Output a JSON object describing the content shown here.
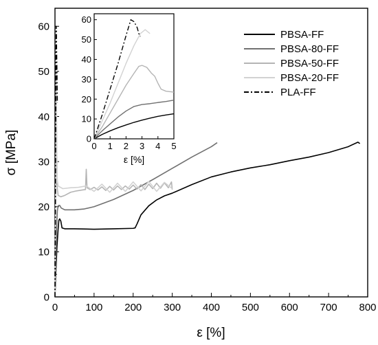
{
  "chart_data": [
    {
      "type": "line",
      "xlabel": "ε [%]",
      "ylabel": "σ [MPa]",
      "xlim": [
        0,
        800
      ],
      "ylim": [
        0,
        64
      ],
      "xticks": [
        0,
        100,
        200,
        300,
        400,
        500,
        600,
        700,
        800
      ],
      "yticks": [
        0,
        10,
        20,
        30,
        40,
        50,
        60
      ],
      "grid": false,
      "legend": "top-right",
      "series": [
        {
          "name": "PBSA-FF",
          "color": "#000000",
          "dash": "solid",
          "points": [
            [
              0,
              0
            ],
            [
              2,
              5
            ],
            [
              5,
              11
            ],
            [
              8,
              15
            ],
            [
              10,
              17
            ],
            [
              12,
              17.3
            ],
            [
              15,
              16.8
            ],
            [
              18,
              15.3
            ],
            [
              25,
              15.1
            ],
            [
              50,
              15.1
            ],
            [
              100,
              15.0
            ],
            [
              150,
              15.1
            ],
            [
              200,
              15.2
            ],
            [
              205,
              15.3
            ],
            [
              210,
              16.2
            ],
            [
              215,
              17.2
            ],
            [
              220,
              18.2
            ],
            [
              240,
              20.2
            ],
            [
              260,
              21.5
            ],
            [
              280,
              22.4
            ],
            [
              300,
              23.0
            ],
            [
              350,
              24.9
            ],
            [
              400,
              26.6
            ],
            [
              450,
              27.7
            ],
            [
              500,
              28.6
            ],
            [
              550,
              29.3
            ],
            [
              600,
              30.2
            ],
            [
              650,
              31.0
            ],
            [
              700,
              32.0
            ],
            [
              750,
              33.3
            ],
            [
              775,
              34.3
            ],
            [
              780,
              34.0
            ]
          ]
        },
        {
          "name": "PBSA-80-FF",
          "color": "#707070",
          "dash": "solid",
          "points": [
            [
              0,
              0
            ],
            [
              2,
              8
            ],
            [
              4,
              15
            ],
            [
              6,
              19
            ],
            [
              8,
              20.2
            ],
            [
              12,
              20.3
            ],
            [
              16,
              19.7
            ],
            [
              25,
              19.3
            ],
            [
              50,
              19.3
            ],
            [
              75,
              19.5
            ],
            [
              100,
              20.0
            ],
            [
              150,
              21.6
            ],
            [
              200,
              23.6
            ],
            [
              250,
              26.0
            ],
            [
              300,
              28.5
            ],
            [
              350,
              31.0
            ],
            [
              400,
              33.3
            ],
            [
              415,
              34.2
            ]
          ]
        },
        {
          "name": "PBSA-50-FF",
          "color": "#b4b4b4",
          "dash": "solid",
          "points": [
            [
              0,
              0
            ],
            [
              1,
              12
            ],
            [
              2,
              25
            ],
            [
              3,
              34
            ],
            [
              4,
              38
            ],
            [
              5,
              30
            ],
            [
              6,
              24
            ],
            [
              8,
              22.5
            ],
            [
              15,
              22.2
            ],
            [
              25,
              22.5
            ],
            [
              40,
              23.2
            ],
            [
              55,
              23.5
            ],
            [
              70,
              23.7
            ],
            [
              78,
              23.8
            ],
            [
              80,
              28.3
            ],
            [
              82,
              24.2
            ],
            [
              90,
              23.8
            ],
            [
              100,
              24.3
            ],
            [
              110,
              23.7
            ],
            [
              120,
              24.4
            ],
            [
              130,
              23.6
            ],
            [
              140,
              24.5
            ],
            [
              150,
              23.7
            ],
            [
              160,
              24.6
            ],
            [
              170,
              23.8
            ],
            [
              180,
              24.6
            ],
            [
              190,
              23.9
            ],
            [
              200,
              24.8
            ],
            [
              210,
              23.9
            ],
            [
              220,
              24.9
            ],
            [
              230,
              23.8
            ],
            [
              240,
              25.0
            ],
            [
              250,
              24.0
            ],
            [
              260,
              25.2
            ],
            [
              270,
              24.1
            ],
            [
              280,
              25.3
            ],
            [
              290,
              24.2
            ],
            [
              298,
              25.5
            ],
            [
              300,
              23.8
            ]
          ]
        },
        {
          "name": "PBSA-20-FF",
          "color": "#d2d2d2",
          "dash": "solid",
          "points": [
            [
              0,
              0
            ],
            [
              1,
              14
            ],
            [
              2,
              30
            ],
            [
              3,
              46
            ],
            [
              3.5,
              50
            ],
            [
              4,
              42
            ],
            [
              5,
              30
            ],
            [
              6,
              26
            ],
            [
              8,
              24.6
            ],
            [
              20,
              24.0
            ],
            [
              40,
              24.2
            ],
            [
              60,
              24.3
            ],
            [
              80,
              24.6
            ],
            [
              100,
              23.4
            ],
            [
              120,
              25.0
            ],
            [
              140,
              23.2
            ],
            [
              160,
              25.2
            ],
            [
              180,
              23.4
            ],
            [
              200,
              25.5
            ],
            [
              220,
              23.5
            ],
            [
              240,
              25.6
            ],
            [
              260,
              23.4
            ],
            [
              280,
              25.4
            ],
            [
              300,
              24.0
            ]
          ]
        },
        {
          "name": "PLA-FF",
          "color": "#000000",
          "dash": "dashdot",
          "points": [
            [
              0,
              0
            ],
            [
              1,
              20
            ],
            [
              2,
              45
            ],
            [
              3,
              60
            ],
            [
              3.5,
              59
            ],
            [
              4,
              55
            ],
            [
              5,
              50
            ],
            [
              6,
              43
            ]
          ]
        }
      ]
    },
    {
      "type": "line",
      "xlabel": "ε [%]",
      "ylabel": "",
      "xlim": [
        0,
        5
      ],
      "ylim": [
        0,
        63
      ],
      "xticks": [
        0,
        1,
        2,
        3,
        4,
        5
      ],
      "yticks": [
        0,
        10,
        20,
        30,
        40,
        50,
        60
      ],
      "grid": false,
      "legend": "",
      "series": [
        {
          "color": "#000000",
          "dash": "solid",
          "points": [
            [
              0,
              0
            ],
            [
              0.5,
              2.2
            ],
            [
              1,
              4
            ],
            [
              1.5,
              5.6
            ],
            [
              2,
              7
            ],
            [
              2.5,
              8.3
            ],
            [
              3,
              9.4
            ],
            [
              3.5,
              10.4
            ],
            [
              4,
              11.3
            ],
            [
              4.5,
              12
            ],
            [
              5,
              12.6
            ]
          ]
        },
        {
          "color": "#707070",
          "dash": "solid",
          "points": [
            [
              0,
              0
            ],
            [
              0.5,
              4
            ],
            [
              1,
              7.5
            ],
            [
              1.5,
              11
            ],
            [
              2,
              14
            ],
            [
              2.5,
              16.3
            ],
            [
              3,
              17.3
            ],
            [
              3.5,
              17.7
            ],
            [
              4,
              18.3
            ],
            [
              4.5,
              18.8
            ],
            [
              5,
              19.5
            ]
          ]
        },
        {
          "color": "#b4b4b4",
          "dash": "solid",
          "points": [
            [
              0,
              0
            ],
            [
              0.5,
              6
            ],
            [
              1,
              13
            ],
            [
              1.5,
              20
            ],
            [
              2,
              27
            ],
            [
              2.5,
              33
            ],
            [
              2.8,
              36.5
            ],
            [
              3,
              37
            ],
            [
              3.3,
              36
            ],
            [
              3.6,
              33
            ],
            [
              3.8,
              31.5
            ],
            [
              4,
              28
            ],
            [
              4.2,
              25
            ],
            [
              4.5,
              24
            ],
            [
              5,
              23.5
            ]
          ]
        },
        {
          "color": "#d2d2d2",
          "dash": "solid",
          "points": [
            [
              0,
              0
            ],
            [
              0.5,
              9
            ],
            [
              1,
              18
            ],
            [
              1.5,
              28
            ],
            [
              2,
              38
            ],
            [
              2.5,
              47
            ],
            [
              2.9,
              53
            ],
            [
              3.2,
              55
            ],
            [
              3.5,
              53
            ]
          ]
        },
        {
          "color": "#000000",
          "dash": "dashdot",
          "points": [
            [
              0,
              0
            ],
            [
              0.5,
              12
            ],
            [
              1,
              25
            ],
            [
              1.5,
              38
            ],
            [
              2,
              52
            ],
            [
              2.3,
              60
            ],
            [
              2.5,
              59
            ],
            [
              2.7,
              56
            ],
            [
              2.8,
              53
            ],
            [
              2.9,
              51.5
            ]
          ]
        }
      ]
    }
  ]
}
